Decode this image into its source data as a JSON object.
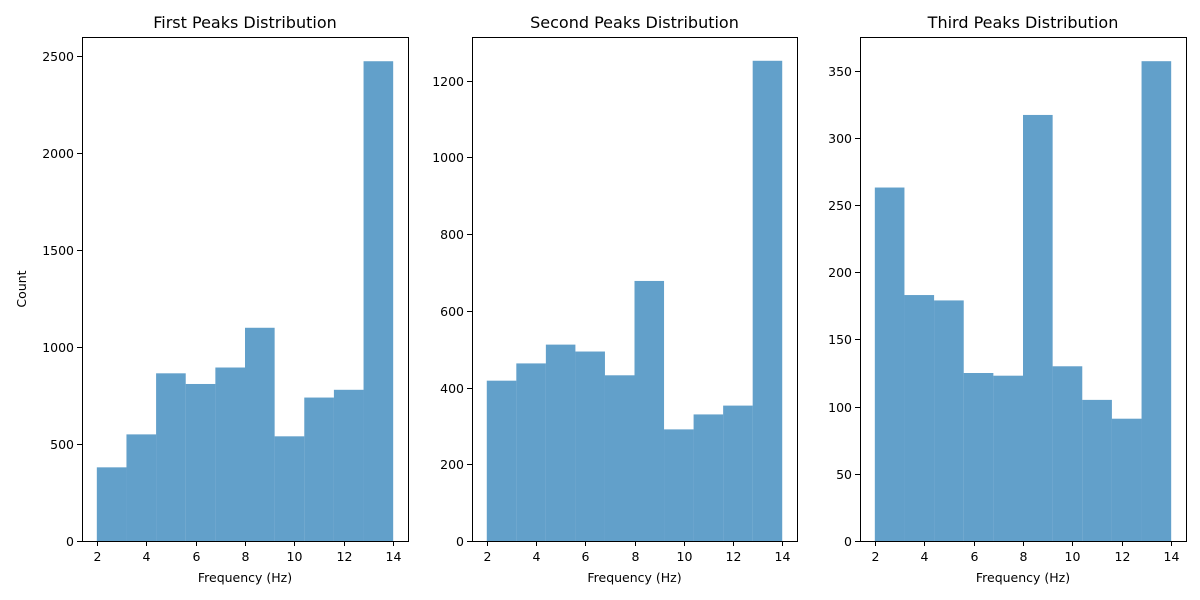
{
  "chart_data": [
    {
      "type": "bar",
      "title": "First Peaks Distribution",
      "xlabel": "Frequency (Hz)",
      "ylabel": "Count",
      "bin_edges": [
        2.0,
        3.2,
        4.4,
        5.6,
        6.8,
        8.0,
        9.2,
        10.4,
        11.6,
        12.8,
        14.0
      ],
      "values": [
        380,
        550,
        865,
        810,
        895,
        1100,
        540,
        740,
        780,
        2475
      ],
      "xlim": [
        1.4,
        14.6
      ],
      "ylim": [
        0,
        2600
      ],
      "xticks": [
        2,
        4,
        6,
        8,
        10,
        12,
        14
      ],
      "yticks": [
        0,
        500,
        1000,
        1500,
        2000,
        2500
      ],
      "bar_color": "#1f77b4",
      "bar_alpha": 0.7,
      "grid": false
    },
    {
      "type": "bar",
      "title": "Second Peaks Distribution",
      "xlabel": "Frequency (Hz)",
      "ylabel": "",
      "bin_edges": [
        2.0,
        3.2,
        4.4,
        5.6,
        6.8,
        8.0,
        9.2,
        10.4,
        11.6,
        12.8,
        14.0
      ],
      "values": [
        418,
        463,
        512,
        494,
        432,
        678,
        291,
        330,
        353,
        1252
      ],
      "xlim": [
        1.4,
        14.6
      ],
      "ylim": [
        0,
        1314
      ],
      "xticks": [
        2,
        4,
        6,
        8,
        10,
        12,
        14
      ],
      "yticks": [
        0,
        200,
        400,
        600,
        800,
        1000,
        1200
      ],
      "bar_color": "#1f77b4",
      "bar_alpha": 0.7,
      "grid": false
    },
    {
      "type": "bar",
      "title": "Third Peaks Distribution",
      "xlabel": "Frequency (Hz)",
      "ylabel": "",
      "bin_edges": [
        2.0,
        3.2,
        4.4,
        5.6,
        6.8,
        8.0,
        9.2,
        10.4,
        11.6,
        12.8,
        14.0
      ],
      "values": [
        263,
        183,
        179,
        125,
        123,
        317,
        130,
        105,
        91,
        357
      ],
      "xlim": [
        1.4,
        14.6
      ],
      "ylim": [
        0,
        375
      ],
      "xticks": [
        2,
        4,
        6,
        8,
        10,
        12,
        14
      ],
      "yticks": [
        0,
        50,
        100,
        150,
        200,
        250,
        300,
        350
      ],
      "bar_color": "#1f77b4",
      "bar_alpha": 0.7,
      "grid": false
    }
  ]
}
